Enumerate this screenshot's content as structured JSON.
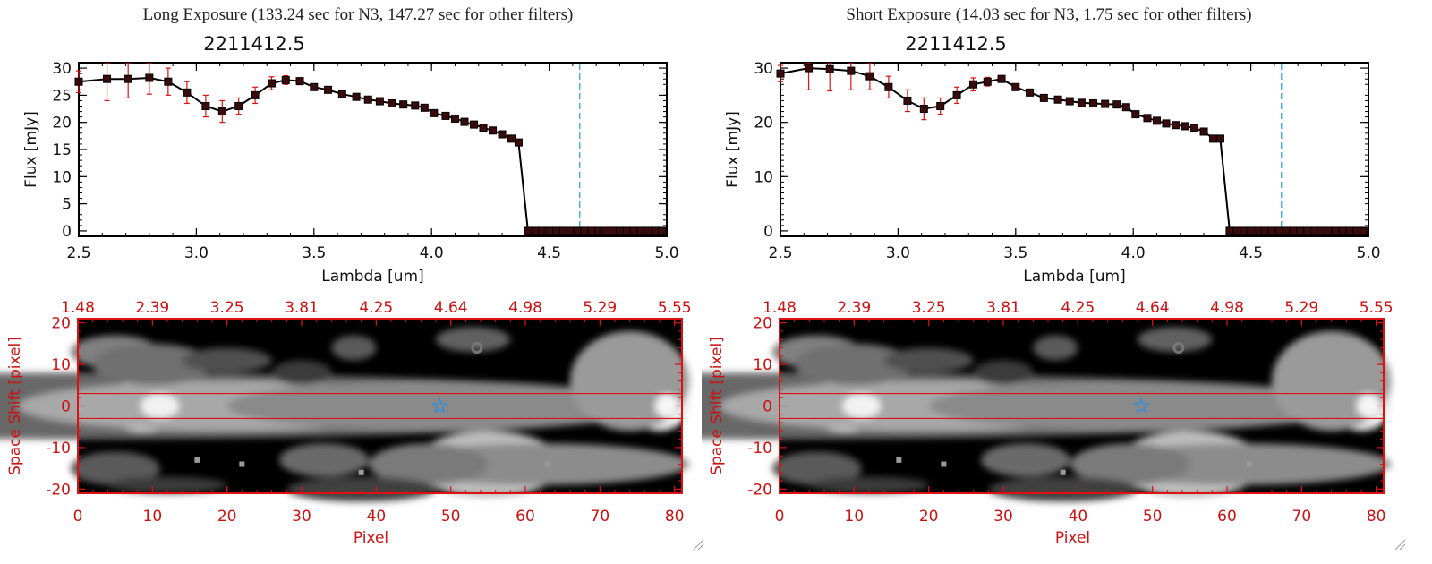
{
  "chart_data": [
    {
      "type": "line",
      "exposure_title": "Long Exposure (133.24 sec for N3, 147.27 sec for other filters)",
      "title": "2211412.5",
      "xlabel": "Lambda [um]",
      "ylabel": "Flux [mJy]",
      "xlim": [
        2.5,
        5.0
      ],
      "ylim": [
        -1,
        31
      ],
      "xticks": [
        "2.5",
        "3.0",
        "3.5",
        "4.0",
        "4.5",
        "5.0"
      ],
      "yticks": [
        "0",
        "5",
        "10",
        "15",
        "20",
        "25",
        "30"
      ],
      "vline_x": 4.63,
      "x": [
        2.5,
        2.62,
        2.71,
        2.8,
        2.88,
        2.96,
        3.04,
        3.11,
        3.18,
        3.25,
        3.32,
        3.38,
        3.44,
        3.5,
        3.56,
        3.62,
        3.68,
        3.73,
        3.78,
        3.83,
        3.88,
        3.93,
        3.97,
        4.01,
        4.06,
        4.1,
        4.14,
        4.18,
        4.22,
        4.26,
        4.3,
        4.34,
        4.37,
        4.41,
        4.44,
        4.47,
        4.5,
        4.53,
        4.56,
        4.59,
        4.62,
        4.65,
        4.68,
        4.71,
        4.74,
        4.77,
        4.8,
        4.83,
        4.86,
        4.89,
        4.92,
        4.95,
        4.98
      ],
      "y": [
        27.5,
        28.0,
        28.0,
        28.2,
        27.5,
        25.5,
        23.0,
        22.0,
        23.0,
        25.0,
        27.2,
        27.8,
        27.6,
        26.5,
        26.0,
        25.2,
        24.7,
        24.2,
        23.9,
        23.5,
        23.3,
        23.1,
        22.7,
        21.7,
        21.2,
        20.7,
        20.1,
        19.6,
        19.0,
        18.5,
        17.8,
        17.0,
        16.3,
        0,
        0,
        0,
        0,
        0,
        0,
        0,
        0,
        0,
        0,
        0,
        0,
        0,
        0,
        0,
        0,
        0,
        0,
        0,
        0
      ],
      "yerr": [
        2.0,
        4.0,
        3.5,
        3.0,
        2.5,
        2.0,
        2.0,
        2.0,
        1.5,
        1.5,
        1.2,
        0.8,
        0.6,
        0.5,
        0.4,
        0.4,
        0.4,
        0.4,
        0.4,
        0.4,
        0.4,
        0.4,
        0.4,
        0.4,
        0.4,
        0.4,
        0.4,
        0.4,
        0.4,
        0.4,
        0.4,
        0.4,
        0.4,
        0,
        0,
        0,
        0,
        0,
        0,
        0,
        0,
        0,
        0,
        0,
        0,
        0,
        0,
        0,
        0,
        0,
        0,
        0,
        0
      ],
      "image": {
        "top_axis_ticks": [
          "1.48",
          "2.39",
          "3.25",
          "3.81",
          "4.25",
          "4.64",
          "4.98",
          "5.29",
          "5.55"
        ],
        "xlabel": "Pixel",
        "ylabel": "Space Shift [pixel]",
        "xticks": [
          "0",
          "10",
          "20",
          "30",
          "40",
          "50",
          "60",
          "70",
          "80"
        ],
        "yticks": [
          "20",
          "10",
          "0",
          "-10",
          "-20"
        ],
        "xlim": [
          0,
          81
        ],
        "ylim": [
          -21,
          21
        ],
        "aperture": [
          -3,
          3
        ],
        "star": [
          48.5,
          0
        ]
      }
    },
    {
      "type": "line",
      "exposure_title": "Short Exposure (14.03 sec for N3, 1.75 sec for other filters)",
      "title": "2211412.5",
      "xlabel": "Lambda [um]",
      "ylabel": "Flux [mJy]",
      "xlim": [
        2.5,
        5.0
      ],
      "ylim": [
        -1,
        31
      ],
      "xticks": [
        "2.5",
        "3.0",
        "3.5",
        "4.0",
        "4.5",
        "5.0"
      ],
      "yticks": [
        "0",
        "10",
        "20",
        "30"
      ],
      "vline_x": 4.63,
      "x": [
        2.5,
        2.62,
        2.71,
        2.8,
        2.88,
        2.96,
        3.04,
        3.11,
        3.18,
        3.25,
        3.32,
        3.38,
        3.44,
        3.5,
        3.56,
        3.62,
        3.68,
        3.73,
        3.78,
        3.83,
        3.88,
        3.93,
        3.97,
        4.01,
        4.06,
        4.1,
        4.14,
        4.18,
        4.22,
        4.26,
        4.3,
        4.34,
        4.37,
        4.41,
        4.44,
        4.47,
        4.5,
        4.53,
        4.56,
        4.59,
        4.62,
        4.65,
        4.68,
        4.71,
        4.74,
        4.77,
        4.8,
        4.83,
        4.86,
        4.89,
        4.92,
        4.95,
        4.98
      ],
      "y": [
        29.0,
        30.0,
        29.8,
        29.5,
        28.5,
        26.5,
        24.0,
        22.5,
        23.0,
        25.0,
        27.0,
        27.5,
        28.0,
        26.5,
        25.5,
        24.5,
        24.2,
        23.9,
        23.6,
        23.5,
        23.4,
        23.3,
        22.8,
        21.5,
        20.8,
        20.3,
        19.8,
        19.5,
        19.3,
        19.0,
        18.3,
        17.0,
        17.0,
        0,
        0,
        0,
        0,
        0,
        0,
        0,
        0,
        0,
        0,
        0,
        0,
        0,
        0,
        0,
        0,
        0,
        0,
        0,
        0
      ],
      "yerr": [
        1.5,
        4.0,
        4.0,
        3.5,
        2.5,
        2.0,
        2.0,
        2.0,
        1.5,
        1.5,
        1.2,
        0.8,
        0.6,
        0.5,
        0.4,
        0.4,
        0.4,
        0.4,
        0.4,
        0.4,
        0.4,
        0.4,
        0.4,
        0.4,
        0.4,
        0.4,
        0.4,
        0.4,
        0.4,
        0.4,
        0.4,
        0.4,
        0.4,
        0,
        0,
        0,
        0,
        0,
        0,
        0,
        0,
        0,
        0,
        0,
        0,
        0,
        0,
        0,
        0,
        0,
        0,
        0,
        0
      ],
      "image": {
        "top_axis_ticks": [
          "1.48",
          "2.39",
          "3.25",
          "3.81",
          "4.25",
          "4.64",
          "4.98",
          "5.29",
          "5.55"
        ],
        "xlabel": "Pixel",
        "ylabel": "Space Shift [pixel]",
        "xticks": [
          "0",
          "10",
          "20",
          "30",
          "40",
          "50",
          "60",
          "70",
          "80"
        ],
        "yticks": [
          "20",
          "10",
          "0",
          "-10",
          "-20"
        ],
        "xlim": [
          0,
          81
        ],
        "ylim": [
          -21,
          21
        ],
        "aperture": [
          -3,
          3
        ],
        "star": [
          48.5,
          0
        ]
      }
    }
  ],
  "colors": {
    "line": "#000000",
    "marker": "#3a0b0b",
    "errorbar": "#dd1111",
    "vline": "#2a9ad6",
    "image_frame": "#dd1111",
    "star": "#2e8ee0"
  }
}
